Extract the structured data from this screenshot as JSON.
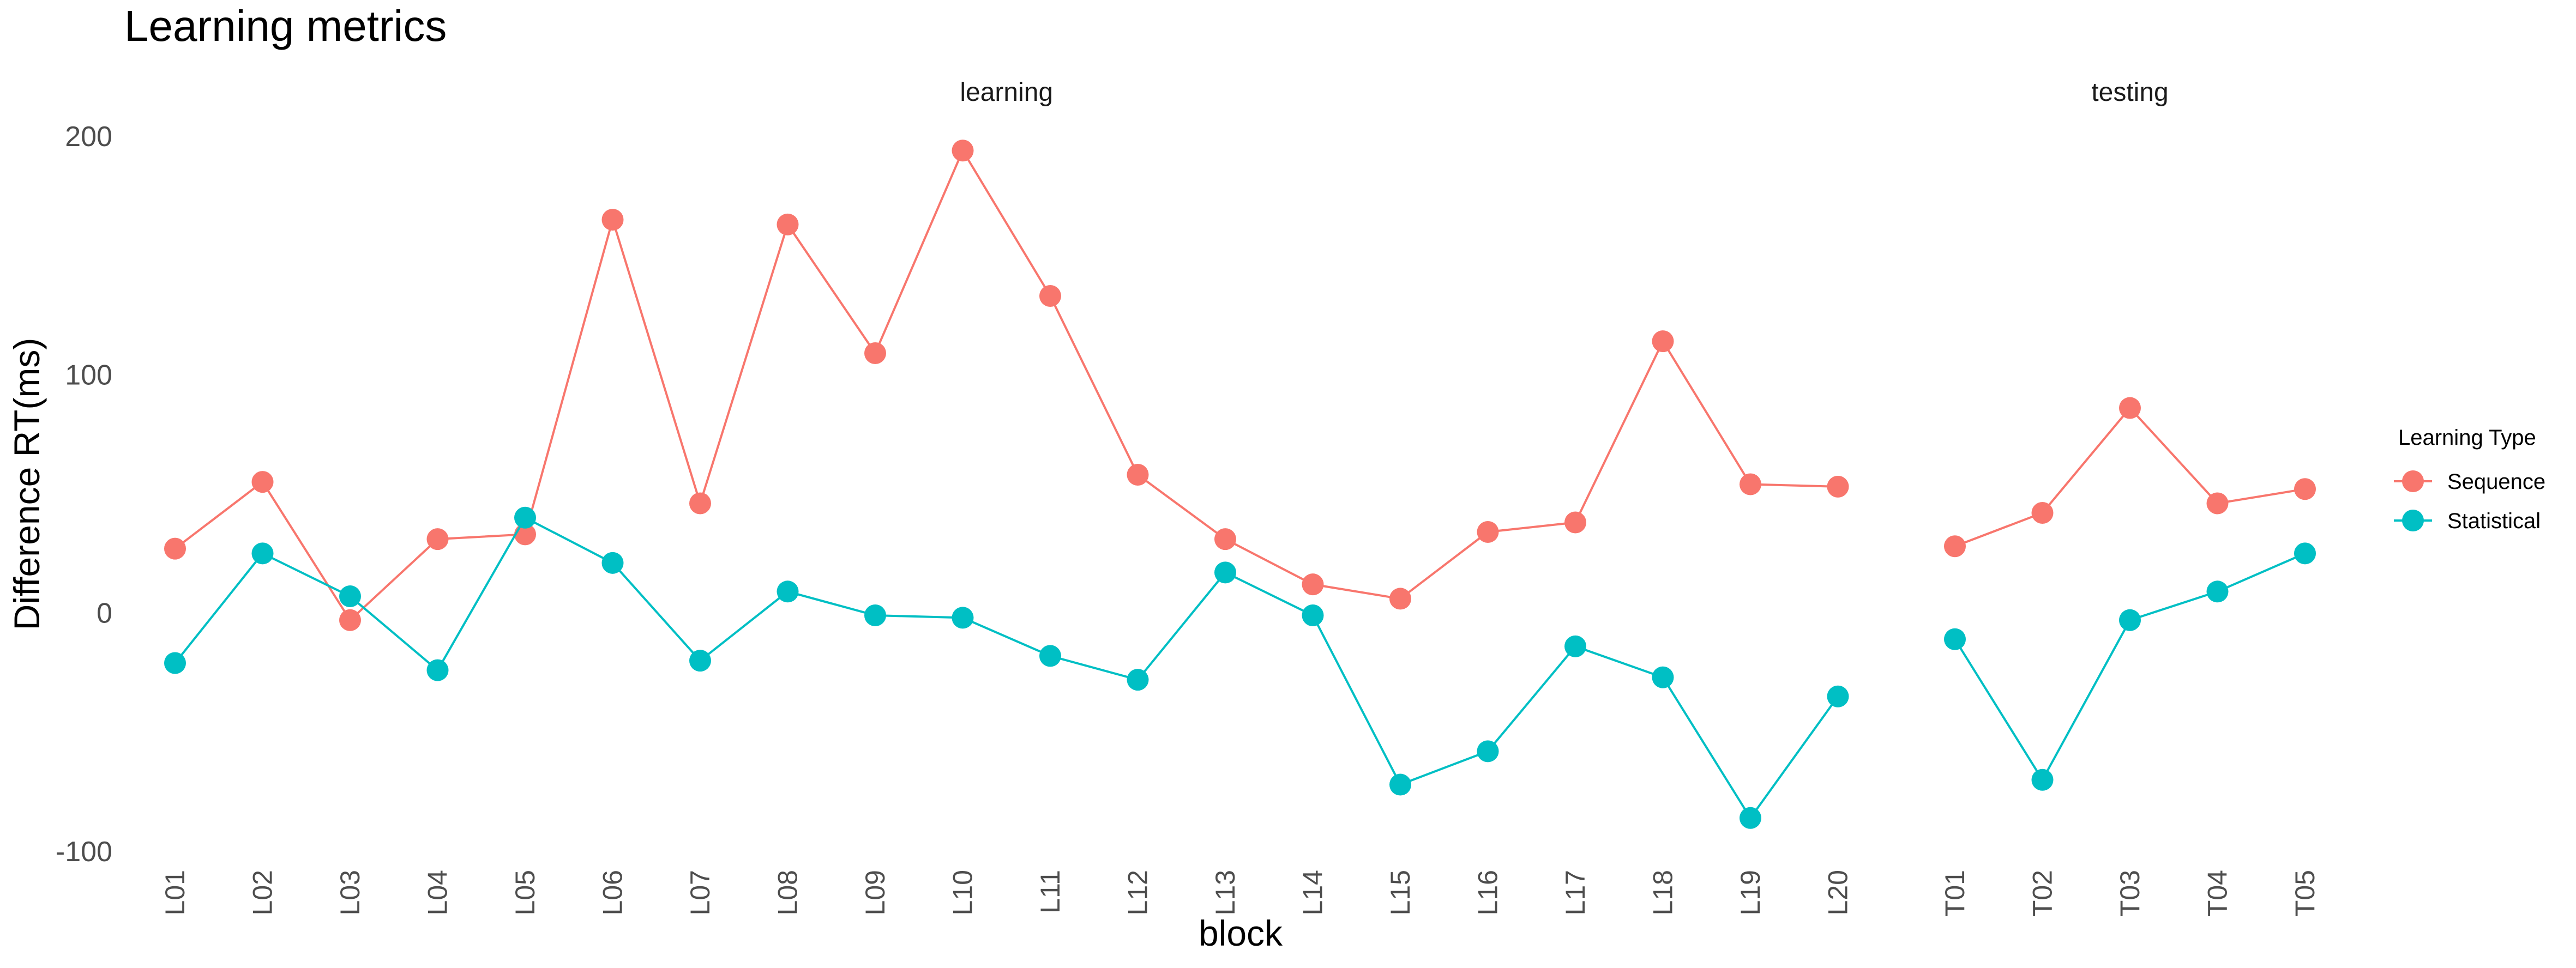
{
  "chart_data": {
    "type": "line",
    "title": "Learning metrics",
    "xlabel": "block",
    "ylabel": "Difference RT(ms)",
    "ylim": [
      -100,
      200
    ],
    "yticks": [
      -100,
      0,
      100,
      200
    ],
    "grid": false,
    "legend": {
      "title": "Learning Type",
      "position": "right",
      "entries": [
        "Sequence",
        "Statistical"
      ]
    },
    "colors": {
      "Sequence": "#F8766D",
      "Statistical": "#00BFC4"
    },
    "facets": [
      {
        "label": "learning",
        "categories": [
          "L01",
          "L02",
          "L03",
          "L04",
          "L05",
          "L06",
          "L07",
          "L08",
          "L09",
          "L10",
          "L11",
          "L12",
          "L13",
          "L14",
          "L15",
          "L16",
          "L17",
          "L18",
          "L19",
          "L20"
        ],
        "series": [
          {
            "name": "Sequence",
            "values": [
              27,
              55,
              -3,
              31,
              33,
              165,
              46,
              163,
              109,
              194,
              133,
              58,
              31,
              12,
              6,
              34,
              38,
              114,
              54,
              53
            ]
          },
          {
            "name": "Statistical",
            "values": [
              -21,
              25,
              7,
              -24,
              40,
              21,
              -20,
              9,
              -1,
              -2,
              -18,
              -28,
              17,
              -1,
              -72,
              -58,
              -14,
              -27,
              -86,
              -35
            ]
          }
        ]
      },
      {
        "label": "testing",
        "categories": [
          "T01",
          "T02",
          "T03",
          "T04",
          "T05"
        ],
        "series": [
          {
            "name": "Sequence",
            "values": [
              28,
              42,
              86,
              46,
              52
            ]
          },
          {
            "name": "Statistical",
            "values": [
              -11,
              -70,
              -3,
              9,
              25
            ]
          }
        ]
      }
    ]
  }
}
